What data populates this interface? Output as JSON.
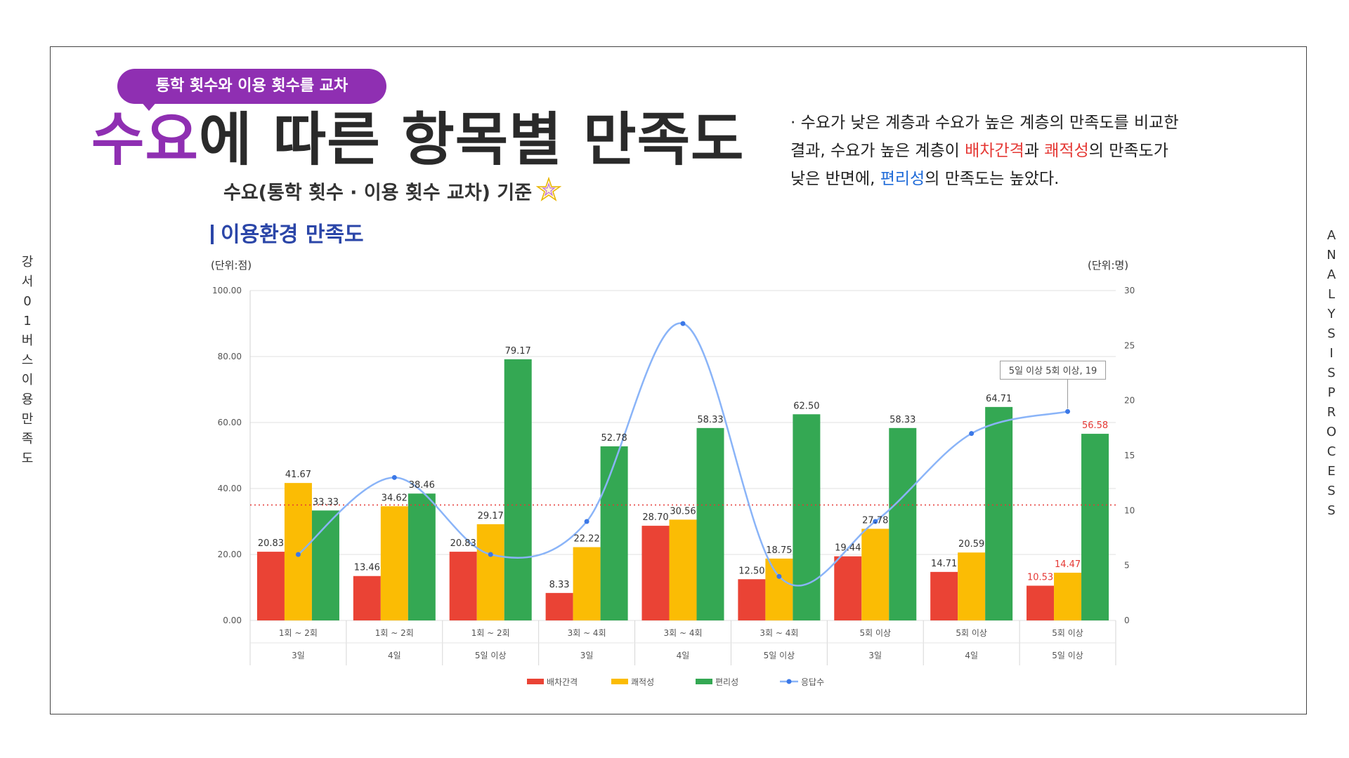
{
  "side": {
    "left_vertical": [
      "강",
      "서",
      "0",
      "1",
      "버",
      "스",
      "이",
      "용",
      "만",
      "족",
      "도"
    ],
    "right_vertical": [
      "A",
      "N",
      "A",
      "L",
      "Y",
      "S",
      "I",
      "S",
      "P",
      "R",
      "O",
      "C",
      "E",
      "S",
      "S"
    ]
  },
  "header": {
    "badge": "통학 횟수와 이용 횟수를 교차",
    "headline_highlight": "수요",
    "headline_rest": "에 따른 항목별 만족도",
    "subtitle": "수요(통학 횟수 · 이용 횟수 교차) 기준"
  },
  "summary": {
    "line1": "· 수요가 낮은 계층과 수요가 높은 계층의 만족도를 비교한",
    "line2_a": "결과, 수요가 높은 계층이 ",
    "line2_red1": "배차간격",
    "line2_b": "과 ",
    "line2_red2": "쾌적성",
    "line2_c": "의 만족도가",
    "line3_a": "낮은 반면에, ",
    "line3_blue": "편리성",
    "line3_b": "의 만족도는 높았다."
  },
  "section": {
    "title": "이용환경 만족도",
    "unit_left": "(단위:점)",
    "unit_right": "(단위:명)"
  },
  "colors": {
    "accent": "#8f2fb2",
    "headline_dark": "#2a2a2a",
    "section_blue": "#2b46a8",
    "series": [
      "#ea4335",
      "#fbbc04",
      "#34a853",
      "#8ab4f8"
    ],
    "reference_line": "#e53935"
  },
  "chart_data": {
    "type": "bar",
    "categories_top": [
      "1회 ~ 2회",
      "1회 ~ 2회",
      "1회 ~ 2회",
      "3회 ~ 4회",
      "3회 ~ 4회",
      "3회 ~ 4회",
      "5회 이상",
      "5회 이상",
      "5회 이상"
    ],
    "categories_bottom": [
      "3일",
      "4일",
      "5일 이상",
      "3일",
      "4일",
      "5일 이상",
      "3일",
      "4일",
      "5일 이상"
    ],
    "series": [
      {
        "name": "배차간격",
        "values": [
          20.83,
          13.46,
          20.83,
          8.33,
          28.7,
          12.5,
          19.44,
          14.71,
          10.53
        ]
      },
      {
        "name": "쾌적성",
        "values": [
          41.67,
          34.62,
          29.17,
          22.22,
          30.56,
          18.75,
          27.78,
          20.59,
          14.47
        ]
      },
      {
        "name": "편리성",
        "values": [
          33.33,
          38.46,
          79.17,
          52.78,
          58.33,
          62.5,
          58.33,
          64.71,
          56.58
        ]
      }
    ],
    "line_series": {
      "name": "응답수",
      "values": [
        6,
        13,
        6,
        9,
        27,
        4,
        9,
        17,
        19
      ]
    },
    "y_left": {
      "min": 0,
      "max": 100,
      "ticks": [
        "0.00",
        "20.00",
        "40.00",
        "60.00",
        "80.00",
        "100.00"
      ]
    },
    "y_right": {
      "min": 0,
      "max": 30,
      "ticks": [
        "0",
        "5",
        "10",
        "15",
        "20",
        "25",
        "30"
      ]
    },
    "reference_value_right": 10.5,
    "highlight_index": 8,
    "callout_text": "5일 이상 5회 이상, 19",
    "legend_placement": "bottom",
    "grid": true
  }
}
